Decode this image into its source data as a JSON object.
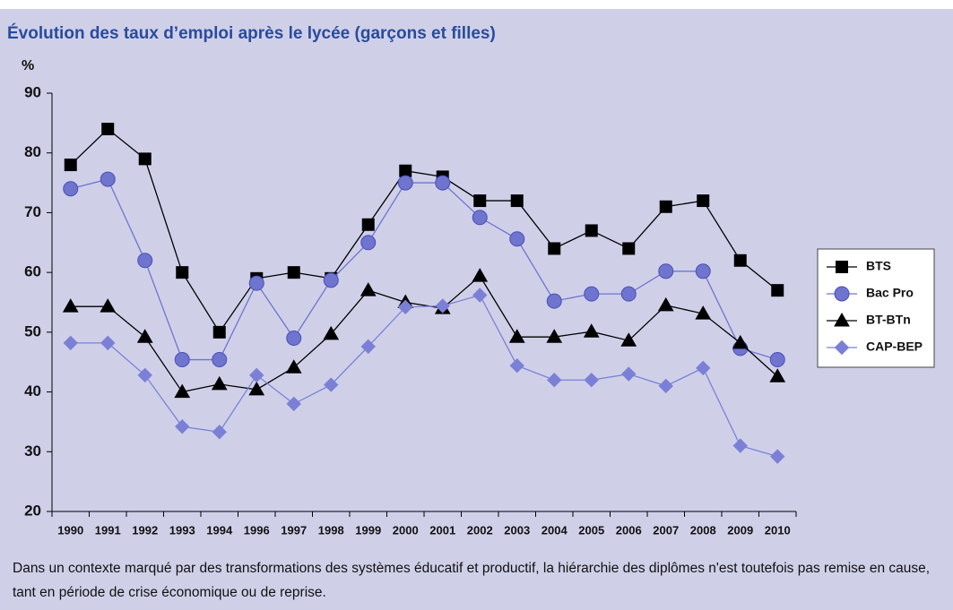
{
  "chart_data": {
    "type": "line",
    "title": "Évolution des taux d’emploi après le lycée (garçons et filles)",
    "y_label": "%",
    "note": "Dans un contexte marqué par des transformations des systèmes éducatif et productif, la hiérarchie des diplômes n'est toutefois pas remise en cause, tant en période de crise économique ou de reprise.",
    "categories": [
      "1990",
      "1991",
      "1992",
      "1993",
      "1994",
      "1996",
      "1997",
      "1998",
      "1999",
      "2000",
      "2001",
      "2002",
      "2003",
      "2004",
      "2005",
      "2006",
      "2007",
      "2008",
      "2009",
      "2010"
    ],
    "series": [
      {
        "name": "BTS",
        "color": "#000000",
        "marker": "square",
        "values": [
          78,
          84,
          79,
          60,
          50,
          59,
          60,
          59,
          68,
          77,
          76,
          72,
          72,
          64,
          67,
          64,
          71,
          72,
          62,
          57
        ]
      },
      {
        "name": "Bac Pro",
        "color": "#6f74cf",
        "marker": "circle",
        "values": [
          74,
          75.6,
          62,
          45.4,
          45.4,
          58.2,
          49,
          58.7,
          65,
          75,
          75,
          69.2,
          65.6,
          55.2,
          56.4,
          56.4,
          60.2,
          60.2,
          47.3,
          45.4
        ]
      },
      {
        "name": "BT-BTn",
        "color": "#000000",
        "marker": "triangle",
        "values": [
          54.3,
          54.3,
          49.2,
          40,
          41.3,
          40.4,
          44.1,
          49.7,
          57,
          55,
          54,
          59.4,
          49.2,
          49.2,
          50.1,
          48.6,
          54.5,
          53.1,
          48.2,
          42.6
        ]
      },
      {
        "name": "CAP-BEP",
        "color": "#7b80d6",
        "marker": "diamond",
        "values": [
          48.2,
          48.2,
          42.8,
          34.2,
          33.3,
          42.8,
          38,
          41.2,
          47.6,
          54.2,
          54.4,
          56.2,
          44.4,
          42,
          42,
          43,
          41,
          44,
          31,
          29.2
        ]
      }
    ],
    "ylim": [
      20,
      90
    ],
    "yticks": [
      20,
      30,
      40,
      50,
      60,
      70,
      80,
      90
    ],
    "grid": false,
    "legend": "right"
  }
}
